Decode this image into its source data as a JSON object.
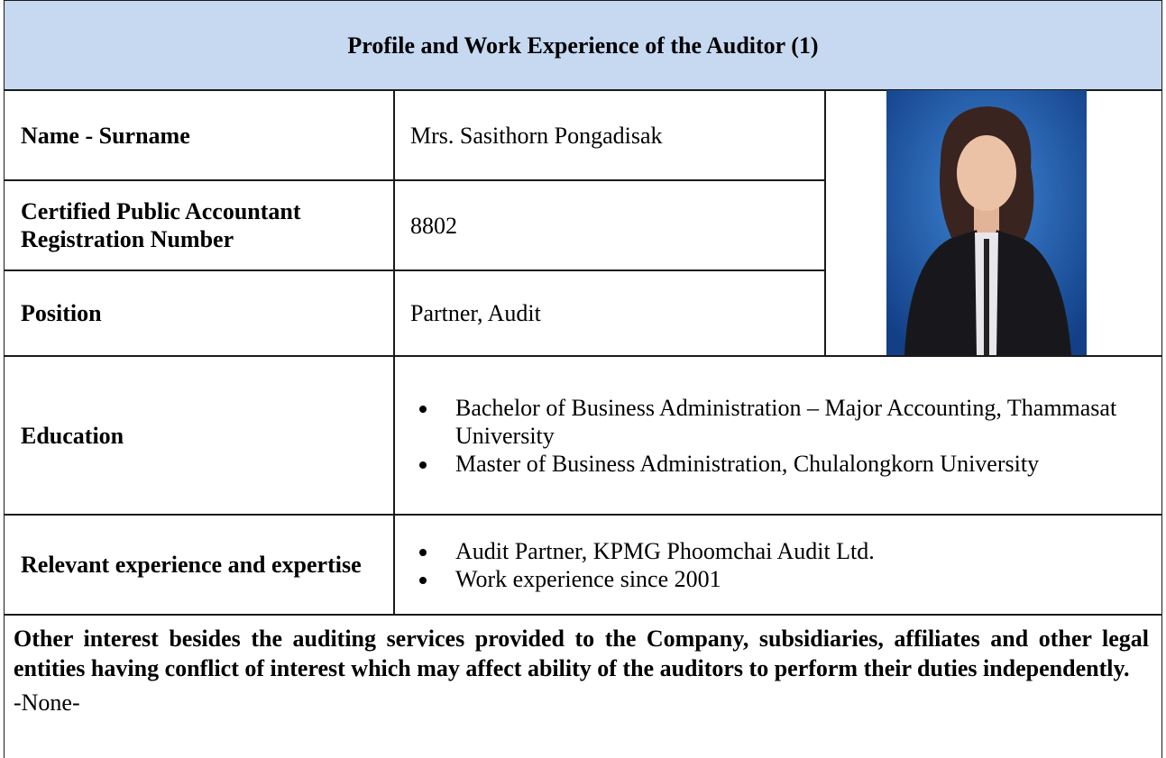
{
  "header": {
    "title": "Profile and Work Experience of the Auditor (1)"
  },
  "table": {
    "rows": [
      {
        "label": "Name - Surname",
        "value": "Mrs. Sasithorn Pongadisak"
      },
      {
        "label": "Certified Public Accountant Registration Number",
        "value": "8802"
      },
      {
        "label": "Position",
        "value": "Partner, Audit"
      },
      {
        "label": "Education",
        "items": [
          "Bachelor of Business Administration – Major Accounting, Thammasat University",
          "Master of Business Administration, Chulalongkorn University"
        ]
      },
      {
        "label": "Relevant experience and expertise",
        "items": [
          "Audit Partner, KPMG Phoomchai Audit Ltd.",
          "Work experience since 2001"
        ]
      }
    ]
  },
  "other_interest": {
    "question": "Other interest besides the auditing services provided to the Company, subsidiaries, affiliates and other legal entities having conflict of interest which may affect ability of the auditors to perform their duties independently.",
    "answer": "-None-"
  }
}
